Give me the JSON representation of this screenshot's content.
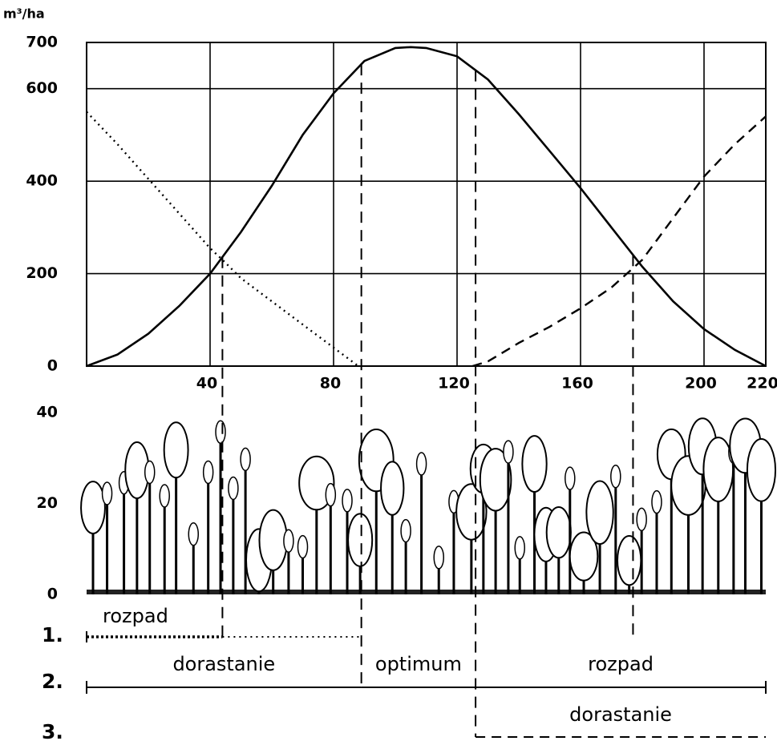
{
  "chart_data": [
    {
      "type": "line",
      "y_label": "m³/ha",
      "xlim": [
        0,
        220
      ],
      "xticks": [
        40,
        80,
        120,
        160,
        200,
        220
      ],
      "ylim": [
        0,
        700
      ],
      "yticks": [
        0,
        200,
        400,
        600,
        700
      ],
      "grid": true,
      "series": [
        {
          "color": "#000000",
          "style": "solid",
          "x": [
            0,
            10,
            20,
            30,
            40,
            50,
            60,
            70,
            80,
            90,
            100,
            105,
            110,
            120,
            130,
            140,
            150,
            160,
            170,
            180,
            190,
            200,
            210,
            220
          ],
          "values": [
            0,
            25,
            70,
            130,
            200,
            290,
            390,
            500,
            590,
            660,
            688,
            690,
            688,
            670,
            620,
            545,
            465,
            385,
            300,
            215,
            140,
            80,
            35,
            0
          ]
        },
        {
          "color": "#000000",
          "style": "dotted",
          "x": [
            0,
            10,
            20,
            30,
            40,
            44,
            50,
            60,
            70,
            80,
            88
          ],
          "values": [
            550,
            480,
            405,
            330,
            255,
            230,
            190,
            140,
            90,
            40,
            0
          ]
        },
        {
          "color": "#000000",
          "style": "dashed",
          "x": [
            125,
            130,
            140,
            150,
            160,
            170,
            180,
            190,
            200,
            210,
            220
          ],
          "values": [
            0,
            10,
            50,
            85,
            125,
            170,
            230,
            320,
            410,
            480,
            540
          ]
        }
      ],
      "boundaries": [
        44,
        89,
        126,
        177
      ],
      "phases": [
        {
          "label": "1.",
          "segments": [
            {
              "name": "rozpad",
              "range": [
                0,
                44
              ],
              "style": "dotted-bold"
            },
            {
              "range": [
                44,
                89
              ],
              "style": "dotted"
            }
          ]
        },
        {
          "label": "2.",
          "segments": [
            {
              "name": "dorastanie",
              "range": [
                0,
                89
              ],
              "style": "solid"
            },
            {
              "name": "optimum",
              "range": [
                89,
                126
              ],
              "style": "solid"
            },
            {
              "name": "rozpad",
              "range": [
                126,
                220
              ],
              "style": "solid"
            }
          ]
        },
        {
          "label": "3.",
          "segments": [
            {
              "name": "dorastanie",
              "range": [
                126,
                220
              ],
              "style": "dashed"
            }
          ]
        }
      ]
    },
    {
      "type": "illustration",
      "ylim": [
        0,
        40
      ],
      "yticks": [
        0,
        20,
        40
      ]
    }
  ]
}
